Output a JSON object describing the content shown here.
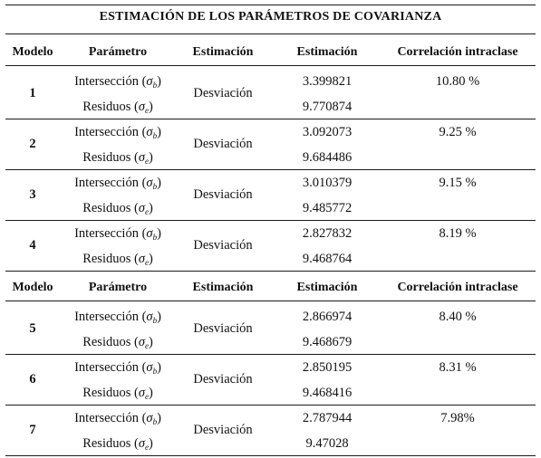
{
  "title": "ESTIMACIÓN DE LOS PARÁMETROS DE COVARIANZA",
  "headers": [
    "Modelo",
    "Parámetro",
    "Estimación",
    "Estimación",
    "Correlación intraclase"
  ],
  "param_labels": {
    "intercept": "Intersección (",
    "intercept_sym": "σ",
    "intercept_sub": "b",
    "residual": "Residuos (",
    "residual_sym": "σ",
    "residual_sub": "e",
    "close": ")"
  },
  "models": [
    {
      "model": "1",
      "estimation": "Desviación",
      "intercept_value": "3.399821",
      "residual_value": "9.770874",
      "icc": "10.80 %"
    },
    {
      "model": "2",
      "estimation": "Desviación",
      "intercept_value": "3.092073",
      "residual_value": "9.684486",
      "icc": "9.25 %"
    },
    {
      "model": "3",
      "estimation": "Desviación",
      "intercept_value": "3.010379",
      "residual_value": "9.485772",
      "icc": "9.15 %"
    },
    {
      "model": "4",
      "estimation": "Desviación",
      "intercept_value": "2.827832",
      "residual_value": "9.468764",
      "icc": "8.19 %"
    },
    {
      "model": "5",
      "estimation": "Desviación",
      "intercept_value": "2.866974",
      "residual_value": "9.468679",
      "icc": "8.40 %"
    },
    {
      "model": "6",
      "estimation": "Desviación",
      "intercept_value": "2.850195",
      "residual_value": "9.468416",
      "icc": "8.31 %"
    },
    {
      "model": "7",
      "estimation": "Desviación",
      "intercept_value": "2.787944",
      "residual_value": "9.47028",
      "icc": "7.98%"
    }
  ]
}
